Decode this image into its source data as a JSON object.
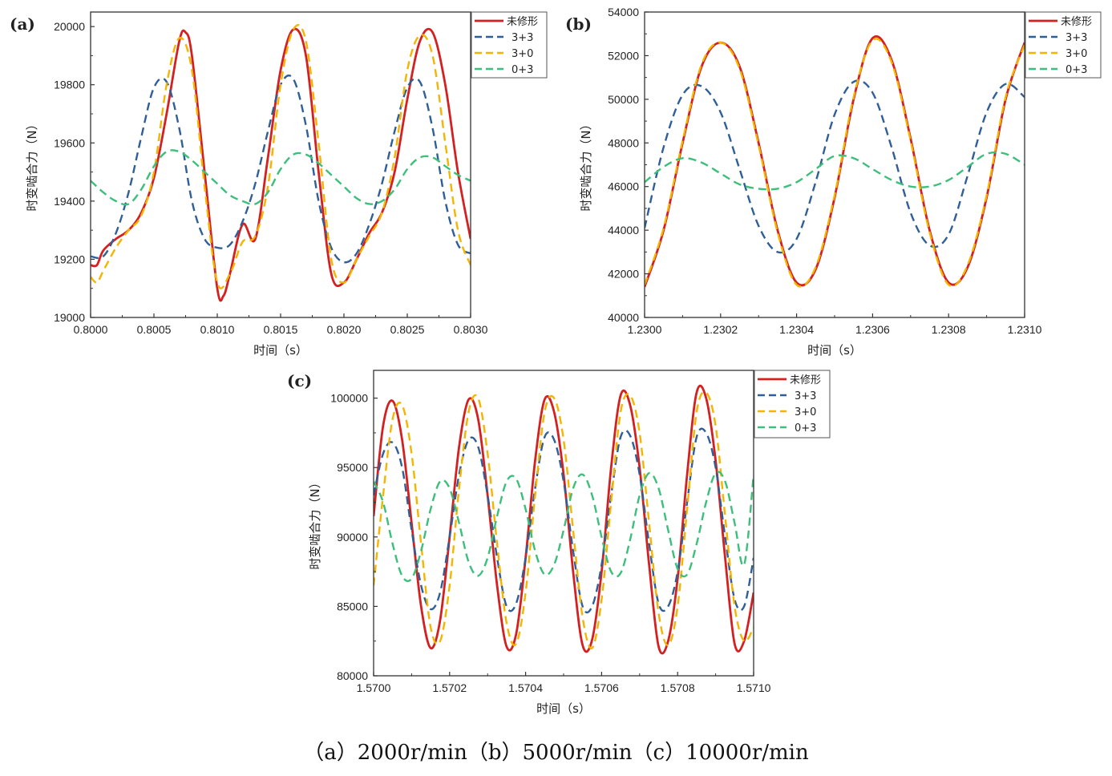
{
  "caption": "（a）2000r/min（b）5000r/min（c）10000r/min",
  "colors": {
    "unmodified": "#d42020",
    "s3p3": "#2f5f96",
    "s3p0": "#f4b400",
    "s0p3": "#3cbf7a"
  },
  "chart_data": [
    {
      "panel": "(a)",
      "type": "line",
      "xlabel": "时间（s）",
      "ylabel": "时变啮合力（N）",
      "xlim": [
        0.8,
        0.803
      ],
      "ylim": [
        19000,
        20050
      ],
      "xticks": [
        "0.8000",
        "0.8005",
        "0.8010",
        "0.8015",
        "0.8020",
        "0.8025",
        "0.8030"
      ],
      "xtick_values": [
        0.8,
        0.8005,
        0.801,
        0.8015,
        0.802,
        0.8025,
        0.803
      ],
      "yticks": [
        "19000",
        "19200",
        "19400",
        "19600",
        "19800",
        "20000"
      ],
      "ytick_values": [
        19000,
        19200,
        19400,
        19600,
        19800,
        20000
      ],
      "legend_position": "top-right",
      "series": [
        {
          "name": "未修形",
          "style": "solid",
          "color": "#d42020",
          "x": [
            0.8,
            0.80005,
            0.8001,
            0.8002,
            0.8003,
            0.8004,
            0.8005,
            0.8006,
            0.8007,
            0.80075,
            0.8008,
            0.8009,
            0.801,
            0.80105,
            0.8011,
            0.8012,
            0.8013,
            0.8014,
            0.8015,
            0.8016,
            0.8017,
            0.8018,
            0.8019,
            0.802,
            0.8021,
            0.8022,
            0.8023,
            0.8024,
            0.8025,
            0.8026,
            0.8027,
            0.8028,
            0.8029,
            0.803
          ],
          "y": [
            19180,
            19180,
            19230,
            19270,
            19300,
            19360,
            19480,
            19700,
            19950,
            19980,
            19900,
            19500,
            19100,
            19075,
            19150,
            19320,
            19270,
            19550,
            19850,
            19990,
            19900,
            19500,
            19150,
            19120,
            19200,
            19290,
            19360,
            19500,
            19750,
            19950,
            19980,
            19800,
            19500,
            19270
          ]
        },
        {
          "name": "3+3",
          "style": "dashed",
          "color": "#2f5f96",
          "x": [
            0.8,
            0.8001,
            0.8002,
            0.8003,
            0.8004,
            0.8005,
            0.8006,
            0.8007,
            0.8008,
            0.8009,
            0.801,
            0.8011,
            0.8012,
            0.8013,
            0.8014,
            0.8015,
            0.8016,
            0.8017,
            0.8018,
            0.8019,
            0.802,
            0.8021,
            0.8022,
            0.8023,
            0.8024,
            0.8025,
            0.8026,
            0.8027,
            0.8028,
            0.8029,
            0.803
          ],
          "y": [
            19210,
            19210,
            19290,
            19430,
            19620,
            19790,
            19810,
            19650,
            19400,
            19270,
            19240,
            19250,
            19330,
            19460,
            19640,
            19800,
            19820,
            19660,
            19400,
            19240,
            19190,
            19220,
            19320,
            19460,
            19640,
            19790,
            19810,
            19650,
            19400,
            19250,
            19220
          ]
        },
        {
          "name": "3+0",
          "style": "dashed",
          "color": "#f4b400",
          "x": [
            0.8,
            0.80005,
            0.8001,
            0.8002,
            0.8003,
            0.8004,
            0.8005,
            0.8006,
            0.8007,
            0.8008,
            0.8009,
            0.801,
            0.8011,
            0.8012,
            0.8013,
            0.8014,
            0.8015,
            0.8016,
            0.8017,
            0.8018,
            0.8019,
            0.802,
            0.8021,
            0.8022,
            0.8023,
            0.8024,
            0.8025,
            0.8026,
            0.8027,
            0.8028,
            0.8029,
            0.803
          ],
          "y": [
            19140,
            19120,
            19160,
            19240,
            19300,
            19350,
            19500,
            19800,
            19960,
            19850,
            19450,
            19120,
            19150,
            19260,
            19280,
            19450,
            19800,
            19990,
            19950,
            19600,
            19200,
            19120,
            19200,
            19280,
            19360,
            19550,
            19850,
            19970,
            19900,
            19600,
            19300,
            19180
          ]
        },
        {
          "name": "0+3",
          "style": "dashed",
          "color": "#3cbf7a",
          "x": [
            0.8,
            0.8001,
            0.8002,
            0.8003,
            0.8004,
            0.8005,
            0.8006,
            0.8007,
            0.8008,
            0.8009,
            0.801,
            0.8011,
            0.8012,
            0.8013,
            0.8014,
            0.8015,
            0.8016,
            0.8017,
            0.8018,
            0.8019,
            0.802,
            0.8021,
            0.8022,
            0.8023,
            0.8024,
            0.8025,
            0.8026,
            0.8027,
            0.8028,
            0.8029,
            0.803
          ],
          "y": [
            19470,
            19430,
            19400,
            19390,
            19440,
            19520,
            19570,
            19570,
            19540,
            19500,
            19460,
            19420,
            19400,
            19390,
            19430,
            19510,
            19560,
            19560,
            19530,
            19490,
            19450,
            19410,
            19390,
            19400,
            19440,
            19510,
            19550,
            19550,
            19520,
            19490,
            19470
          ]
        }
      ]
    },
    {
      "panel": "(b)",
      "type": "line",
      "xlabel": "时间（s）",
      "ylabel": "时变啮合力（N）",
      "xlim": [
        1.23,
        1.231
      ],
      "ylim": [
        40000,
        54000
      ],
      "xticks": [
        "1.2300",
        "1.2302",
        "1.2304",
        "1.2306",
        "1.2308",
        "1.2310"
      ],
      "xtick_values": [
        1.23,
        1.2302,
        1.2304,
        1.2306,
        1.2308,
        1.231
      ],
      "yticks": [
        "40000",
        "42000",
        "44000",
        "46000",
        "48000",
        "50000",
        "52000",
        "54000"
      ],
      "ytick_values": [
        40000,
        42000,
        44000,
        46000,
        48000,
        50000,
        52000,
        54000
      ],
      "legend_position": "top-right",
      "series": [
        {
          "name": "未修形",
          "style": "solid",
          "color": "#d42020",
          "x": [
            1.23,
            1.23005,
            1.2301,
            1.23015,
            1.2302,
            1.23025,
            1.2303,
            1.23035,
            1.2304,
            1.23045,
            1.2305,
            1.23055,
            1.2306,
            1.23065,
            1.2307,
            1.23075,
            1.2308,
            1.23085,
            1.2309,
            1.23095,
            1.231
          ],
          "y": [
            41400,
            44000,
            48000,
            51500,
            52600,
            51500,
            48000,
            44000,
            41600,
            42200,
            45500,
            50000,
            52800,
            51800,
            48200,
            44000,
            41600,
            42300,
            45500,
            50000,
            52600
          ]
        },
        {
          "name": "3+3",
          "style": "dashed",
          "color": "#2f5f96",
          "x": [
            1.23,
            1.23005,
            1.2301,
            1.23015,
            1.2302,
            1.23025,
            1.2303,
            1.23035,
            1.2304,
            1.23045,
            1.2305,
            1.23055,
            1.2306,
            1.23065,
            1.2307,
            1.23075,
            1.2308,
            1.23085,
            1.2309,
            1.23095,
            1.231
          ],
          "y": [
            44100,
            47800,
            50200,
            50600,
            49400,
            46800,
            44200,
            43000,
            43600,
            46200,
            49300,
            50800,
            50300,
            47800,
            44800,
            43300,
            43800,
            46500,
            49400,
            50700,
            50100
          ]
        },
        {
          "name": "3+0",
          "style": "dashed",
          "color": "#f4b400",
          "x": [
            1.23,
            1.23005,
            1.2301,
            1.23015,
            1.2302,
            1.23025,
            1.2303,
            1.23035,
            1.2304,
            1.23045,
            1.2305,
            1.23055,
            1.2306,
            1.23065,
            1.2307,
            1.23075,
            1.2308,
            1.23085,
            1.2309,
            1.23095,
            1.231
          ],
          "y": [
            41500,
            44100,
            48100,
            51600,
            52600,
            51400,
            47900,
            43900,
            41500,
            42300,
            45600,
            50100,
            52700,
            51700,
            48100,
            43900,
            41500,
            42400,
            45600,
            50100,
            52500
          ]
        },
        {
          "name": "0+3",
          "style": "dashed",
          "color": "#3cbf7a",
          "x": [
            1.23,
            1.23005,
            1.2301,
            1.23015,
            1.2302,
            1.23025,
            1.2303,
            1.23035,
            1.2304,
            1.23045,
            1.2305,
            1.23055,
            1.2306,
            1.23065,
            1.2307,
            1.23075,
            1.2308,
            1.23085,
            1.2309,
            1.23095,
            1.231
          ],
          "y": [
            46200,
            46900,
            47300,
            47100,
            46600,
            46100,
            45900,
            45900,
            46200,
            46800,
            47400,
            47300,
            46800,
            46300,
            46000,
            46000,
            46300,
            46900,
            47500,
            47500,
            47000
          ]
        }
      ]
    },
    {
      "panel": "(c)",
      "type": "line",
      "xlabel": "时间（s）",
      "ylabel": "时变啮合力（N）",
      "xlim": [
        1.57,
        1.571
      ],
      "ylim": [
        80000,
        102000
      ],
      "xticks": [
        "1.5700",
        "1.5702",
        "1.5704",
        "1.5706",
        "1.5708",
        "1.5710"
      ],
      "xtick_values": [
        1.57,
        1.5702,
        1.5704,
        1.5706,
        1.5708,
        1.571
      ],
      "yticks": [
        "80000",
        "85000",
        "90000",
        "95000",
        "100000"
      ],
      "ytick_values": [
        80000,
        85000,
        90000,
        95000,
        100000
      ],
      "legend_position": "top-right",
      "series": [
        {
          "name": "未修形",
          "style": "solid",
          "color": "#d42020",
          "x": [
            1.57,
            1.570025,
            1.57005,
            1.570075,
            1.5701,
            1.570125,
            1.57015,
            1.570175,
            1.5702,
            1.570225,
            1.57025,
            1.570275,
            1.5703,
            1.570325,
            1.57035,
            1.570375,
            1.5704,
            1.570425,
            1.57045,
            1.570475,
            1.5705,
            1.570525,
            1.57055,
            1.570575,
            1.5706,
            1.570625,
            1.57065,
            1.570675,
            1.5707,
            1.570725,
            1.57075,
            1.570775,
            1.5708,
            1.570825,
            1.57085,
            1.570875,
            1.5709,
            1.570925,
            1.57095,
            1.570975,
            1.571
          ],
          "y": [
            91500,
            98000,
            99800,
            97000,
            91000,
            85000,
            82000,
            84000,
            90000,
            96500,
            99900,
            98500,
            93000,
            86500,
            82100,
            83000,
            88500,
            95500,
            99900,
            99000,
            94500,
            87500,
            82200,
            82600,
            87500,
            95000,
            100200,
            99500,
            95000,
            88000,
            82100,
            82500,
            87000,
            94500,
            100400,
            100000,
            95500,
            88500,
            82300,
            82500,
            86000
          ]
        },
        {
          "name": "3+3",
          "style": "dashed",
          "color": "#2f5f96",
          "x": [
            1.57,
            1.570025,
            1.57005,
            1.570075,
            1.5701,
            1.570125,
            1.57015,
            1.570175,
            1.5702,
            1.570225,
            1.57025,
            1.570275,
            1.5703,
            1.570325,
            1.57035,
            1.570375,
            1.5704,
            1.570425,
            1.57045,
            1.570475,
            1.5705,
            1.570525,
            1.57055,
            1.570575,
            1.5706,
            1.570625,
            1.57065,
            1.570675,
            1.5707,
            1.570725,
            1.57075,
            1.570775,
            1.5708,
            1.570825,
            1.57085,
            1.570875,
            1.5709,
            1.570925,
            1.57095,
            1.570975,
            1.571
          ],
          "y": [
            93000,
            96000,
            96800,
            95000,
            90500,
            86500,
            84800,
            86000,
            90000,
            94500,
            97000,
            96500,
            93000,
            88500,
            85000,
            85200,
            88500,
            93500,
            97200,
            97000,
            94000,
            89000,
            85000,
            85000,
            88000,
            93000,
            97200,
            97300,
            94500,
            89500,
            85200,
            85000,
            87500,
            92500,
            97200,
            97500,
            95000,
            90000,
            85500,
            85000,
            88500
          ]
        },
        {
          "name": "3+0",
          "style": "dashed",
          "color": "#f4b400",
          "x": [
            1.57,
            1.570025,
            1.57005,
            1.570075,
            1.5701,
            1.570125,
            1.57015,
            1.570175,
            1.5702,
            1.570225,
            1.57025,
            1.570275,
            1.5703,
            1.570325,
            1.57035,
            1.570375,
            1.5704,
            1.570425,
            1.57045,
            1.570475,
            1.5705,
            1.570525,
            1.57055,
            1.570575,
            1.5706,
            1.570625,
            1.57065,
            1.570675,
            1.5707,
            1.570725,
            1.57075,
            1.570775,
            1.5708,
            1.570825,
            1.57085,
            1.570875,
            1.5709,
            1.570925,
            1.57095,
            1.570975,
            1.571
          ],
          "y": [
            86500,
            93000,
            98500,
            99500,
            96000,
            89500,
            83500,
            82500,
            86500,
            93500,
            99000,
            100000,
            96000,
            89500,
            83800,
            82300,
            86000,
            93000,
            99000,
            100000,
            97000,
            90500,
            84200,
            82000,
            85500,
            92500,
            99000,
            100200,
            97500,
            91000,
            84500,
            82200,
            85000,
            92000,
            99000,
            100400,
            98000,
            91500,
            85000,
            82500,
            83500
          ]
        },
        {
          "name": "0+3",
          "style": "dashed",
          "color": "#3cbf7a",
          "x": [
            1.57,
            1.570025,
            1.57005,
            1.570075,
            1.5701,
            1.570125,
            1.57015,
            1.570175,
            1.5702,
            1.570225,
            1.57025,
            1.570275,
            1.5703,
            1.570325,
            1.57035,
            1.570375,
            1.5704,
            1.570425,
            1.57045,
            1.570475,
            1.5705,
            1.570525,
            1.57055,
            1.570575,
            1.5706,
            1.570625,
            1.57065,
            1.570675,
            1.5707,
            1.570725,
            1.57075,
            1.570775,
            1.5708,
            1.570825,
            1.57085,
            1.570875,
            1.5709,
            1.570925,
            1.57095,
            1.570975,
            1.571
          ],
          "y": [
            94000,
            92500,
            89500,
            87200,
            87000,
            89000,
            92000,
            94000,
            93500,
            91000,
            88200,
            87200,
            88500,
            91500,
            94000,
            94200,
            92000,
            89000,
            87300,
            88000,
            90500,
            93500,
            94500,
            93000,
            90000,
            87500,
            87400,
            89800,
            93000,
            94600,
            93500,
            90500,
            87700,
            87300,
            89500,
            92500,
            94600,
            94000,
            91000,
            88000,
            94500
          ]
        }
      ]
    }
  ]
}
